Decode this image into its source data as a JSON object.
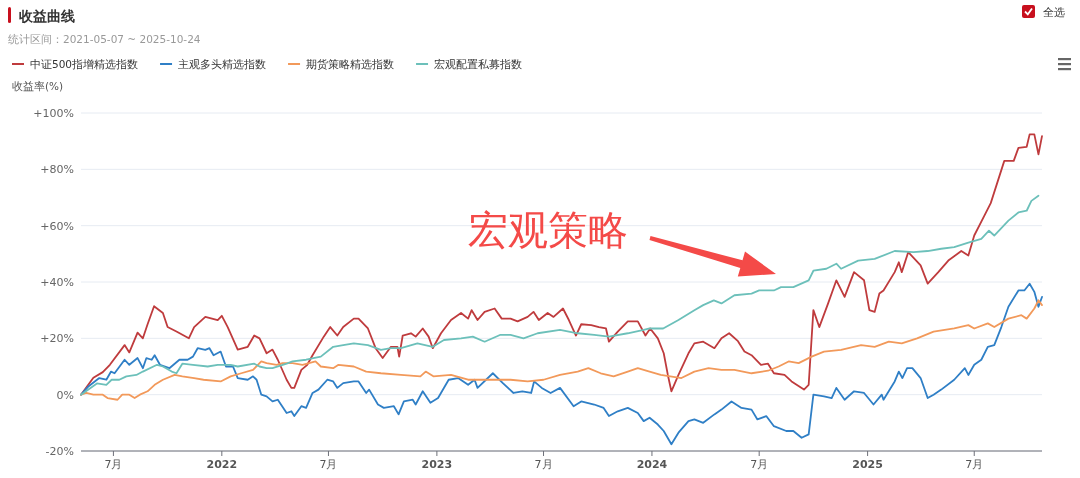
{
  "chart_data": {
    "type": "line",
    "title": "收益曲线",
    "subtitle": "统计区间：2021-05-07 ~ 2025-10-24",
    "ylabel": "收益率(%)",
    "annotations": [
      "宏观策略",
      "全选"
    ],
    "xlim": [
      "2021-05-07",
      "2025-10-24"
    ],
    "xticks": [
      {
        "value": "2021-07-01",
        "label": "7月"
      },
      {
        "value": "2022-01-01",
        "label": "2022"
      },
      {
        "value": "2022-07-01",
        "label": "7月"
      },
      {
        "value": "2023-01-01",
        "label": "2023"
      },
      {
        "value": "2023-07-01",
        "label": "7月"
      },
      {
        "value": "2024-01-01",
        "label": "2024"
      },
      {
        "value": "2024-07-01",
        "label": "7月"
      },
      {
        "value": "2025-01-01",
        "label": "2025"
      },
      {
        "value": "2025-07-01",
        "label": "7月"
      }
    ],
    "ylim": [
      -20,
      100
    ],
    "yticks": [
      {
        "value": -20,
        "label": "-20%"
      },
      {
        "value": 0,
        "label": "0%"
      },
      {
        "value": 20,
        "label": "+20%"
      },
      {
        "value": 40,
        "label": "+40%"
      },
      {
        "value": 60,
        "label": "+60%"
      },
      {
        "value": 80,
        "label": "+80%"
      },
      {
        "value": 100,
        "label": "+100%"
      }
    ],
    "grid": "y",
    "legend": "top left",
    "marker": "none",
    "line_style": "solid",
    "series": [
      {
        "name": "中证500指增精选指数",
        "color": "#bf3b3d",
        "x": [
          "2021-05-07",
          "2021-05-28",
          "2021-06-13",
          "2021-06-25",
          "2021-07-20",
          "2021-07-28",
          "2021-08-11",
          "2021-08-20",
          "2021-08-28",
          "2021-09-08",
          "2021-09-23",
          "2021-10-01",
          "2021-10-16",
          "2021-11-06",
          "2021-11-15",
          "2021-12-04",
          "2021-12-25",
          "2022-01-01",
          "2022-01-11",
          "2022-01-28",
          "2022-02-14",
          "2022-02-25",
          "2022-03-06",
          "2022-03-18",
          "2022-03-28",
          "2022-04-06",
          "2022-04-21",
          "2022-04-29",
          "2022-05-04",
          "2022-05-16",
          "2022-05-26",
          "2022-06-04",
          "2022-06-23",
          "2022-07-04",
          "2022-07-16",
          "2022-07-26",
          "2022-08-13",
          "2022-08-21",
          "2022-09-06",
          "2022-09-19",
          "2022-10-01",
          "2022-10-15",
          "2022-10-26",
          "2022-10-29",
          "2022-11-04",
          "2022-11-18",
          "2022-11-26",
          "2022-12-08",
          "2022-12-18",
          "2022-12-25",
          "2023-01-08",
          "2023-01-25",
          "2023-02-11",
          "2023-02-23",
          "2023-03-01",
          "2023-03-11",
          "2023-03-23",
          "2023-04-09",
          "2023-04-21",
          "2023-05-06",
          "2023-05-18",
          "2023-06-04",
          "2023-06-14",
          "2023-06-23",
          "2023-07-08",
          "2023-07-18",
          "2023-08-03",
          "2023-08-13",
          "2023-08-25",
          "2023-09-03",
          "2023-09-20",
          "2023-10-03",
          "2023-10-15",
          "2023-10-20",
          "2023-11-04",
          "2023-11-21",
          "2023-12-08",
          "2023-12-21",
          "2023-12-29",
          "2024-01-11",
          "2024-01-21",
          "2024-01-28",
          "2024-02-03",
          "2024-02-15",
          "2024-03-03",
          "2024-03-13",
          "2024-03-28",
          "2024-04-16",
          "2024-04-28",
          "2024-05-11",
          "2024-05-26",
          "2024-06-06",
          "2024-06-18",
          "2024-07-04",
          "2024-07-16",
          "2024-07-26",
          "2024-08-13",
          "2024-08-25",
          "2024-09-15",
          "2024-09-23",
          "2024-10-01",
          "2024-10-11",
          "2024-10-26",
          "2024-11-09",
          "2024-11-23",
          "2024-12-09",
          "2024-12-26",
          "2025-01-04",
          "2025-01-13",
          "2025-01-21",
          "2025-01-28",
          "2025-02-16",
          "2025-02-23",
          "2025-02-28",
          "2025-03-11",
          "2025-04-01",
          "2025-04-13",
          "2025-05-01",
          "2025-05-18",
          "2025-06-09",
          "2025-06-21",
          "2025-07-01",
          "2025-07-18",
          "2025-07-29",
          "2025-08-21",
          "2025-09-06",
          "2025-09-14",
          "2025-09-28",
          "2025-10-03",
          "2025-10-11",
          "2025-10-18",
          "2025-10-24"
        ],
        "values": [
          0,
          6,
          8,
          10.6,
          17.6,
          15,
          22,
          20,
          25,
          31.4,
          29,
          24,
          22.4,
          20,
          24,
          27.6,
          26.5,
          28,
          24,
          16,
          17,
          21,
          20,
          14.7,
          16,
          12.4,
          5.3,
          2.4,
          2.4,
          8.8,
          10.6,
          14,
          20.6,
          24,
          21,
          24,
          27,
          27,
          23.5,
          16.5,
          13,
          17,
          17,
          13.5,
          21,
          21.8,
          20.6,
          23.5,
          20.6,
          16.5,
          21.8,
          26.5,
          29,
          27,
          30,
          26.5,
          29.4,
          30.6,
          27,
          27,
          26,
          27.6,
          29.4,
          26.5,
          29,
          27.6,
          30.6,
          26.5,
          21,
          25,
          24.7,
          24,
          23.5,
          18.8,
          22.4,
          26,
          26,
          21,
          23.5,
          20,
          14.7,
          7,
          1.2,
          7,
          14.7,
          18.2,
          18.8,
          16.5,
          20,
          21.8,
          19,
          15.3,
          14,
          10.6,
          11,
          7.6,
          7,
          4.7,
          1.8,
          3.5,
          30,
          24,
          32.4,
          40.6,
          34.7,
          43.5,
          40.6,
          30,
          29.4,
          35.9,
          37,
          43.5,
          47,
          43.5,
          50.6,
          45.9,
          39.4,
          43.5,
          47.6,
          51,
          49.4,
          56.5,
          63.5,
          68,
          83,
          83,
          87.6,
          88,
          92.4,
          92.4,
          85.3,
          91.8
        ]
      },
      {
        "name": "主观多头精选指数",
        "color": "#2f7fc6",
        "x": [
          "2021-05-07",
          "2021-05-20",
          "2021-06-07",
          "2021-06-19",
          "2021-06-27",
          "2021-07-03",
          "2021-07-20",
          "2021-07-28",
          "2021-08-11",
          "2021-08-20",
          "2021-08-26",
          "2021-09-04",
          "2021-09-09",
          "2021-09-18",
          "2021-10-04",
          "2021-10-21",
          "2021-11-04",
          "2021-11-13",
          "2021-11-21",
          "2021-12-04",
          "2021-12-11",
          "2021-12-18",
          "2021-12-30",
          "2022-01-08",
          "2022-01-20",
          "2022-01-28",
          "2022-02-14",
          "2022-02-23",
          "2022-03-01",
          "2022-03-09",
          "2022-03-18",
          "2022-03-28",
          "2022-04-06",
          "2022-04-21",
          "2022-04-29",
          "2022-05-04",
          "2022-05-16",
          "2022-05-24",
          "2022-06-04",
          "2022-06-14",
          "2022-06-29",
          "2022-07-09",
          "2022-07-16",
          "2022-07-26",
          "2022-08-13",
          "2022-08-21",
          "2022-09-03",
          "2022-09-08",
          "2022-09-23",
          "2022-10-03",
          "2022-10-20",
          "2022-10-28",
          "2022-11-06",
          "2022-11-21",
          "2022-11-26",
          "2022-12-08",
          "2022-12-21",
          "2023-01-03",
          "2023-01-21",
          "2023-02-06",
          "2023-02-23",
          "2023-03-06",
          "2023-03-11",
          "2023-04-06",
          "2023-04-23",
          "2023-05-11",
          "2023-05-26",
          "2023-06-10",
          "2023-06-15",
          "2023-06-28",
          "2023-07-13",
          "2023-07-29",
          "2023-08-21",
          "2023-09-03",
          "2023-09-25",
          "2023-10-11",
          "2023-10-20",
          "2023-11-04",
          "2023-11-21",
          "2023-12-08",
          "2023-12-18",
          "2023-12-28",
          "2024-01-11",
          "2024-01-21",
          "2024-02-03",
          "2024-02-15",
          "2024-03-03",
          "2024-03-13",
          "2024-03-28",
          "2024-04-16",
          "2024-04-28",
          "2024-05-15",
          "2024-06-01",
          "2024-06-18",
          "2024-06-28",
          "2024-07-13",
          "2024-07-26",
          "2024-08-16",
          "2024-08-28",
          "2024-09-11",
          "2024-09-23",
          "2024-10-01",
          "2024-10-19",
          "2024-11-01",
          "2024-11-09",
          "2024-11-23",
          "2024-12-09",
          "2024-12-26",
          "2025-01-11",
          "2025-01-25",
          "2025-01-28",
          "2025-02-16",
          "2025-02-23",
          "2025-03-01",
          "2025-03-09",
          "2025-03-18",
          "2025-04-01",
          "2025-04-13",
          "2025-04-23",
          "2025-05-06",
          "2025-05-28",
          "2025-06-15",
          "2025-06-21",
          "2025-07-01",
          "2025-07-13",
          "2025-07-24",
          "2025-08-04",
          "2025-08-16",
          "2025-08-28",
          "2025-09-14",
          "2025-09-24",
          "2025-10-03",
          "2025-10-11",
          "2025-10-18",
          "2025-10-24"
        ],
        "values": [
          0,
          3,
          5.9,
          5.3,
          8.2,
          7.6,
          12.4,
          10.6,
          13,
          9.4,
          13,
          12.4,
          14,
          10.6,
          9.4,
          12.4,
          12.4,
          13.5,
          16.5,
          15.9,
          16.5,
          14,
          15.3,
          10,
          10,
          5.9,
          5.3,
          6.5,
          5.3,
          0,
          -0.6,
          -2.4,
          -1.8,
          -6.5,
          -5.9,
          -7.6,
          -4.1,
          -4.7,
          0.6,
          1.8,
          5.3,
          4.7,
          2.4,
          4.1,
          4.7,
          4.7,
          0.6,
          1.8,
          -3.5,
          -4.7,
          -4.1,
          -7,
          -2.4,
          -1.8,
          -3.5,
          1.2,
          -2.9,
          -1.2,
          5.3,
          5.9,
          3.5,
          5.3,
          2.4,
          7.6,
          4.1,
          0.6,
          1.2,
          0.6,
          4.7,
          2.4,
          0.6,
          2.4,
          -4.1,
          -2.4,
          -3.5,
          -4.7,
          -7.6,
          -5.9,
          -4.7,
          -6.5,
          -9.4,
          -8.2,
          -10.6,
          -12.9,
          -17.6,
          -13.5,
          -9.4,
          -8.8,
          -10,
          -7,
          -5.3,
          -2.4,
          -4.7,
          -5.3,
          -8.8,
          -7.6,
          -11.2,
          -12.9,
          -12.9,
          -15.3,
          -14.1,
          0,
          -0.6,
          -1.2,
          2.4,
          -1.8,
          1.2,
          0.6,
          -3.5,
          0,
          -1.8,
          4.7,
          8.2,
          5.9,
          9.4,
          9.4,
          5.9,
          -1.2,
          0,
          1.8,
          5.3,
          9.4,
          7,
          10.6,
          12.4,
          17,
          17.6,
          24,
          31.2,
          37,
          37,
          39.4,
          36.5,
          31.2,
          34.7
        ]
      },
      {
        "name": "期货策略精选指数",
        "color": "#f2995a",
        "x": [
          "2021-05-07",
          "2021-05-16",
          "2021-05-28",
          "2021-06-13",
          "2021-06-21",
          "2021-07-08",
          "2021-07-16",
          "2021-07-28",
          "2021-08-06",
          "2021-08-15",
          "2021-08-28",
          "2021-09-09",
          "2021-09-23",
          "2021-10-13",
          "2021-10-26",
          "2021-11-15",
          "2021-12-01",
          "2021-12-30",
          "2022-01-16",
          "2022-02-03",
          "2022-02-23",
          "2022-03-09",
          "2022-03-18",
          "2022-04-04",
          "2022-04-14",
          "2022-05-01",
          "2022-05-18",
          "2022-06-09",
          "2022-06-18",
          "2022-07-09",
          "2022-07-18",
          "2022-08-13",
          "2022-09-03",
          "2022-09-28",
          "2022-11-01",
          "2022-12-04",
          "2022-12-13",
          "2022-12-26",
          "2023-01-25",
          "2023-02-23",
          "2023-03-26",
          "2023-05-06",
          "2023-06-04",
          "2023-07-01",
          "2023-07-29",
          "2023-08-28",
          "2023-09-15",
          "2023-10-06",
          "2023-10-28",
          "2023-11-21",
          "2023-12-08",
          "2023-12-28",
          "2024-01-16",
          "2024-02-20",
          "2024-03-13",
          "2024-04-06",
          "2024-04-28",
          "2024-05-20",
          "2024-06-18",
          "2024-07-16",
          "2024-08-03",
          "2024-08-20",
          "2024-09-06",
          "2024-09-28",
          "2024-10-19",
          "2024-11-17",
          "2024-12-21",
          "2025-01-13",
          "2025-02-06",
          "2025-02-28",
          "2025-03-26",
          "2025-04-23",
          "2025-05-28",
          "2025-06-21",
          "2025-07-01",
          "2025-07-24",
          "2025-08-04",
          "2025-08-28",
          "2025-09-19",
          "2025-09-28",
          "2025-10-11",
          "2025-10-18",
          "2025-10-24"
        ],
        "values": [
          0,
          0.6,
          0,
          0,
          -1.2,
          -1.8,
          0,
          0,
          -1.2,
          0,
          1.2,
          3.5,
          5.3,
          7,
          6.5,
          5.9,
          5.3,
          4.7,
          6.5,
          7.6,
          8.8,
          11.8,
          11.2,
          10.6,
          11.2,
          11.2,
          10.6,
          11.8,
          10,
          9.4,
          10.6,
          10,
          8.2,
          7.6,
          7,
          6.5,
          8.2,
          6.5,
          7,
          5.3,
          5.3,
          5.3,
          4.7,
          5.3,
          7,
          8.2,
          9.4,
          7.6,
          6.5,
          8.2,
          9.4,
          8.2,
          7,
          5.9,
          8.2,
          9.4,
          8.8,
          8.8,
          7.6,
          8.5,
          10,
          11.8,
          11.2,
          13.5,
          15.3,
          15.9,
          17.6,
          17,
          18.8,
          18.2,
          20,
          22.4,
          23.5,
          24.7,
          23.5,
          25.3,
          24,
          27,
          28.2,
          27,
          30.6,
          33.5,
          31.8
        ]
      },
      {
        "name": "宏观配置私募指数",
        "color": "#6cc0ba",
        "x": [
          "2021-05-07",
          "2021-06-03",
          "2021-06-19",
          "2021-06-28",
          "2021-07-11",
          "2021-07-23",
          "2021-08-09",
          "2021-08-20",
          "2021-09-13",
          "2021-09-23",
          "2021-10-08",
          "2021-10-16",
          "2021-10-26",
          "2021-11-13",
          "2021-12-08",
          "2021-12-25",
          "2022-01-16",
          "2022-01-28",
          "2022-02-25",
          "2022-03-06",
          "2022-03-18",
          "2022-03-28",
          "2022-04-21",
          "2022-05-01",
          "2022-05-24",
          "2022-06-18",
          "2022-07-09",
          "2022-07-26",
          "2022-08-13",
          "2022-09-06",
          "2022-09-28",
          "2022-10-15",
          "2022-11-01",
          "2022-11-29",
          "2022-12-25",
          "2023-01-13",
          "2023-02-11",
          "2023-03-03",
          "2023-03-23",
          "2023-04-18",
          "2023-05-06",
          "2023-05-28",
          "2023-06-21",
          "2023-07-29",
          "2023-08-28",
          "2023-09-25",
          "2023-10-20",
          "2023-11-21",
          "2023-12-18",
          "2023-12-28",
          "2024-01-20",
          "2024-02-15",
          "2024-03-13",
          "2024-03-28",
          "2024-04-15",
          "2024-04-28",
          "2024-05-20",
          "2024-06-18",
          "2024-07-01",
          "2024-07-26",
          "2024-08-07",
          "2024-08-28",
          "2024-09-23",
          "2024-10-01",
          "2024-10-23",
          "2024-11-09",
          "2024-11-17",
          "2024-12-16",
          "2025-01-13",
          "2025-02-16",
          "2025-03-20",
          "2025-04-13",
          "2025-05-06",
          "2025-05-28",
          "2025-06-21",
          "2025-07-13",
          "2025-07-26",
          "2025-08-04",
          "2025-08-28",
          "2025-09-14",
          "2025-09-28",
          "2025-10-06",
          "2025-10-18"
        ],
        "values": [
          0,
          4,
          3.5,
          5.3,
          5.3,
          6.5,
          7,
          8.2,
          10.6,
          10,
          8.2,
          7.6,
          11,
          10.6,
          10,
          10.6,
          10.6,
          10,
          11,
          10,
          9.4,
          9.4,
          11,
          11.8,
          12.4,
          13.5,
          17,
          17.6,
          18.2,
          17.6,
          15.9,
          16.5,
          16.5,
          18.2,
          17,
          19.4,
          20,
          20.6,
          18.8,
          21.2,
          21.2,
          20,
          21.8,
          23,
          21.8,
          21.2,
          20.6,
          21.8,
          23,
          23.5,
          23.5,
          26.5,
          30,
          31.8,
          33.5,
          32.4,
          35.3,
          35.9,
          37,
          37,
          38.2,
          38.2,
          40.6,
          44,
          44.7,
          46.5,
          44.7,
          47.6,
          48.2,
          51,
          50.6,
          51,
          51.8,
          52.4,
          54,
          55.3,
          58.2,
          56.5,
          61.8,
          64.7,
          65.3,
          68.8,
          70.6
        ]
      }
    ]
  }
}
